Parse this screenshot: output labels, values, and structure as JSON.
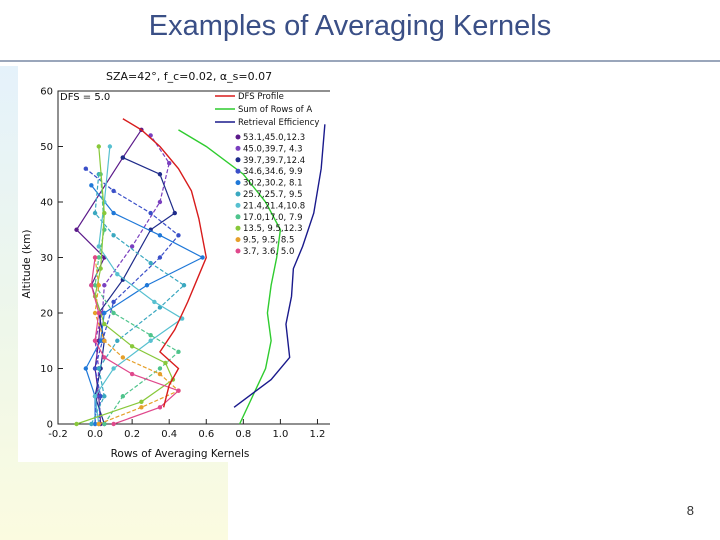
{
  "slide": {
    "title": "Examples of Averaging Kernels",
    "page_number": "8"
  },
  "colors": {
    "title": "#3a4f86",
    "dfs_profile": "#d81c1c",
    "sum_rows": "#2fcc2f",
    "retrieval_efficiency": "#1a1a8c"
  },
  "chart_data": {
    "type": "line",
    "header": "SZA=42°,  f_c=0.02,  α_s=0.07",
    "dfs_label": "DFS = 5.0",
    "xlabel": "Rows of Averaging Kernels",
    "ylabel": "Altitude (km)",
    "xlim": [
      -0.2,
      1.25
    ],
    "ylim": [
      0,
      60
    ],
    "xticks": [
      "-0.2",
      "0.0",
      "0.2",
      "0.4",
      "0.6",
      "0.8",
      "1.0",
      "1.2"
    ],
    "yticks": [
      "0",
      "10",
      "20",
      "30",
      "40",
      "50",
      "60"
    ],
    "legend_position": "top-right",
    "legend": [
      {
        "label": "DFS Profile",
        "color": "#d81c1c"
      },
      {
        "label": "Sum of Rows of A",
        "color": "#2fcc2f"
      },
      {
        "label": "Retrieval Efficiency",
        "color": "#1a1a8c"
      }
    ],
    "series": [
      {
        "name": "DFS Profile",
        "color": "#d81c1c",
        "points": [
          [
            0.37,
            3
          ],
          [
            0.4,
            7
          ],
          [
            0.45,
            10
          ],
          [
            0.35,
            13
          ],
          [
            0.43,
            17
          ],
          [
            0.5,
            22
          ],
          [
            0.55,
            26
          ],
          [
            0.6,
            30
          ],
          [
            0.56,
            37
          ],
          [
            0.52,
            42
          ],
          [
            0.45,
            46
          ],
          [
            0.35,
            50
          ],
          [
            0.25,
            53
          ],
          [
            0.15,
            55
          ]
        ]
      },
      {
        "name": "Sum of Rows of A",
        "color": "#2fcc2f",
        "points": [
          [
            0.78,
            0
          ],
          [
            0.85,
            5
          ],
          [
            0.92,
            10
          ],
          [
            0.95,
            15
          ],
          [
            0.93,
            20
          ],
          [
            0.95,
            25
          ],
          [
            0.98,
            30
          ],
          [
            1.0,
            35
          ],
          [
            0.92,
            40
          ],
          [
            0.8,
            45
          ],
          [
            0.6,
            50
          ],
          [
            0.45,
            53
          ]
        ]
      },
      {
        "name": "Retrieval Efficiency",
        "color": "#1a1a8c",
        "points": [
          [
            0.75,
            3
          ],
          [
            0.95,
            8
          ],
          [
            1.05,
            12
          ],
          [
            1.03,
            18
          ],
          [
            1.06,
            23
          ],
          [
            1.07,
            28
          ],
          [
            1.12,
            32
          ],
          [
            1.18,
            38
          ],
          [
            1.22,
            46
          ],
          [
            1.24,
            54
          ]
        ]
      }
    ],
    "kernel_legend": [
      {
        "label": "53.1,45.0,12.3",
        "color": "#5b1a8a"
      },
      {
        "label": "45.0,39.7,  4.3",
        "color": "#7a3fbf"
      },
      {
        "label": "39.7,39.7,12.4",
        "color": "#1f2b8a"
      },
      {
        "label": "34.6,34.6,  9.9",
        "color": "#3a4fc8"
      },
      {
        "label": "30.2,30.2,  8.1",
        "color": "#1f78d8"
      },
      {
        "label": "25.7,25.7,  9.5",
        "color": "#3aa8c0"
      },
      {
        "label": "21.4,21.4,10.8",
        "color": "#57c0d0"
      },
      {
        "label": "17.0,17.0,  7.9",
        "color": "#4fc48c"
      },
      {
        "label": "13.5,  9.5,12.3",
        "color": "#88c83a"
      },
      {
        "label": "  9.5,  9.5,  8.5",
        "color": "#e6a02a"
      },
      {
        "label": "  3.7,  3.6,  5.0",
        "color": "#e0488c"
      }
    ],
    "kernels": [
      {
        "color": "#5b1a8a",
        "points": [
          [
            0.03,
            0
          ],
          [
            0.02,
            5
          ],
          [
            0.0,
            10
          ],
          [
            0.02,
            15
          ],
          [
            0.03,
            20
          ],
          [
            -0.02,
            25
          ],
          [
            0.05,
            30
          ],
          [
            -0.1,
            35
          ],
          [
            0.15,
            48
          ],
          [
            0.25,
            53
          ]
        ]
      },
      {
        "color": "#7a3fbf",
        "points": [
          [
            0.0,
            0
          ],
          [
            0.01,
            5
          ],
          [
            0.02,
            10
          ],
          [
            0.0,
            15
          ],
          [
            0.04,
            20
          ],
          [
            0.05,
            25
          ],
          [
            0.2,
            32
          ],
          [
            0.35,
            40
          ],
          [
            0.4,
            47
          ],
          [
            0.3,
            52
          ]
        ]
      },
      {
        "color": "#1f2b8a",
        "points": [
          [
            0.05,
            0
          ],
          [
            0.0,
            5
          ],
          [
            0.03,
            10
          ],
          [
            0.05,
            15
          ],
          [
            0.02,
            20
          ],
          [
            0.15,
            26
          ],
          [
            0.3,
            35
          ],
          [
            0.43,
            38
          ],
          [
            0.35,
            45
          ],
          [
            0.15,
            48
          ]
        ]
      },
      {
        "color": "#3a4fc8",
        "points": [
          [
            0.02,
            0
          ],
          [
            0.03,
            5
          ],
          [
            0.0,
            10
          ],
          [
            0.04,
            15
          ],
          [
            0.1,
            22
          ],
          [
            0.35,
            30
          ],
          [
            0.45,
            34
          ],
          [
            0.3,
            38
          ],
          [
            0.1,
            42
          ],
          [
            -0.05,
            46
          ]
        ]
      },
      {
        "color": "#1f78d8",
        "points": [
          [
            0.0,
            0
          ],
          [
            0.0,
            5
          ],
          [
            -0.05,
            10
          ],
          [
            0.03,
            15
          ],
          [
            0.05,
            20
          ],
          [
            0.28,
            25
          ],
          [
            0.58,
            30
          ],
          [
            0.35,
            34
          ],
          [
            0.1,
            38
          ],
          [
            -0.02,
            43
          ]
        ]
      },
      {
        "color": "#3aa8c0",
        "points": [
          [
            -0.02,
            0
          ],
          [
            0.05,
            5
          ],
          [
            0.02,
            10
          ],
          [
            0.12,
            15
          ],
          [
            0.35,
            21
          ],
          [
            0.48,
            25
          ],
          [
            0.3,
            29
          ],
          [
            0.1,
            34
          ],
          [
            0.0,
            38
          ],
          [
            0.02,
            45
          ]
        ]
      },
      {
        "color": "#57c0d0",
        "points": [
          [
            0.02,
            0
          ],
          [
            0.0,
            5
          ],
          [
            0.1,
            10
          ],
          [
            0.3,
            15
          ],
          [
            0.47,
            19
          ],
          [
            0.32,
            22
          ],
          [
            0.12,
            27
          ],
          [
            0.02,
            32
          ],
          [
            0.05,
            40
          ],
          [
            0.08,
            50
          ]
        ]
      },
      {
        "color": "#4fc48c",
        "points": [
          [
            0.05,
            0
          ],
          [
            0.15,
            5
          ],
          [
            0.35,
            10
          ],
          [
            0.45,
            13
          ],
          [
            0.3,
            16
          ],
          [
            0.1,
            20
          ],
          [
            0.0,
            25
          ],
          [
            0.02,
            30
          ],
          [
            0.05,
            35
          ],
          [
            0.03,
            45
          ]
        ]
      },
      {
        "color": "#88c83a",
        "points": [
          [
            -0.1,
            0
          ],
          [
            0.25,
            4
          ],
          [
            0.42,
            8
          ],
          [
            0.38,
            11
          ],
          [
            0.2,
            14
          ],
          [
            0.05,
            18
          ],
          [
            0.0,
            23
          ],
          [
            0.03,
            28
          ],
          [
            0.05,
            38
          ],
          [
            0.02,
            50
          ]
        ]
      },
      {
        "color": "#e6a02a",
        "points": [
          [
            0.02,
            0
          ],
          [
            0.25,
            3
          ],
          [
            0.45,
            6
          ],
          [
            0.35,
            9
          ],
          [
            0.15,
            12
          ],
          [
            0.05,
            15
          ],
          [
            0.0,
            20
          ],
          [
            0.02,
            25
          ],
          [
            0.0,
            30
          ]
        ]
      },
      {
        "color": "#e0488c",
        "points": [
          [
            0.1,
            0
          ],
          [
            0.35,
            3
          ],
          [
            0.45,
            6
          ],
          [
            0.2,
            9
          ],
          [
            0.05,
            12
          ],
          [
            0.0,
            15
          ],
          [
            0.02,
            20
          ],
          [
            -0.02,
            25
          ],
          [
            0.0,
            30
          ]
        ]
      }
    ]
  }
}
